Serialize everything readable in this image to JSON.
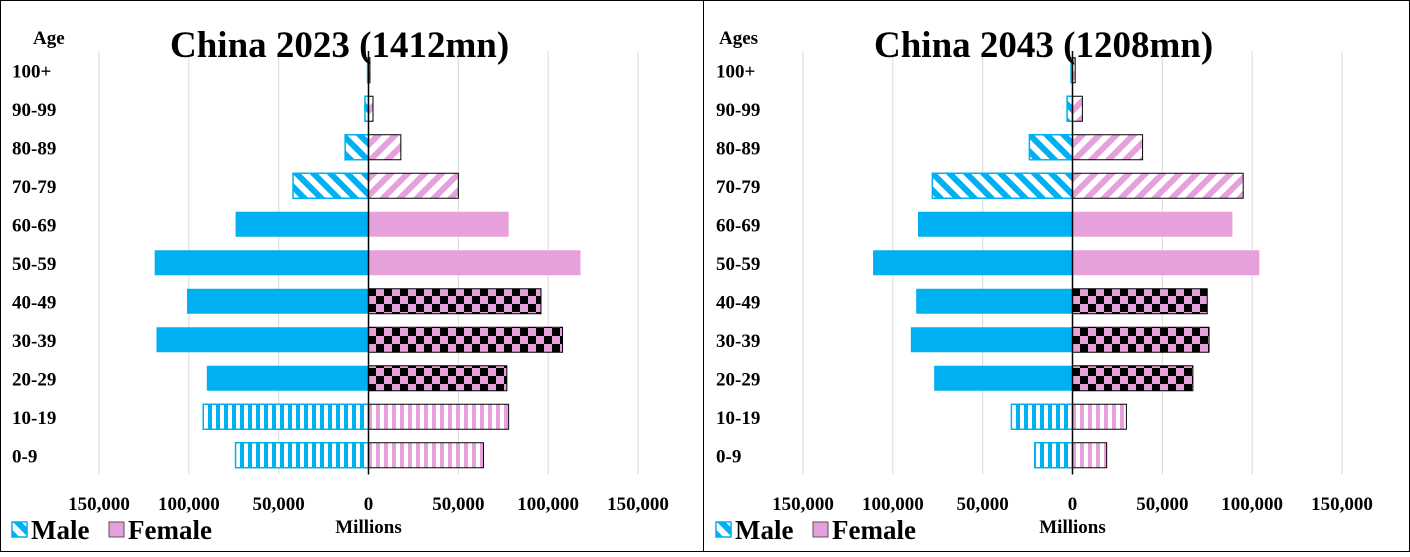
{
  "colors": {
    "male": "#00B0F0",
    "female": "#E6A0DC",
    "checker": "#000000",
    "grid": "#D9D9D9"
  },
  "chart_data": [
    {
      "type": "bar",
      "orientation": "horizontal",
      "title": "China  2023 (1412mn)",
      "ylabel": "Age",
      "xlabel": "Millions",
      "xlim": [
        -150000,
        150000
      ],
      "xticks": [
        -150000,
        -100000,
        -50000,
        0,
        50000,
        100000,
        150000
      ],
      "xtick_labels": [
        "150,000",
        "100,000",
        "50,000",
        "0",
        "50,000",
        "100,000",
        "150,000"
      ],
      "categories": [
        "100+",
        "90-99",
        "80-89",
        "70-79",
        "60-69",
        "50-59",
        "40-49",
        "30-39",
        "20-29",
        "10-19",
        "0-9"
      ],
      "grid": true,
      "legend": "bottom-left",
      "series": [
        {
          "name": "Male",
          "values": [
            -500,
            -2000,
            -13000,
            -42000,
            -74000,
            -119000,
            -101000,
            -118000,
            -90000,
            -92000,
            -74000
          ]
        },
        {
          "name": "Female",
          "values": [
            800,
            2500,
            18000,
            50000,
            78000,
            118000,
            96000,
            108000,
            77000,
            78000,
            64000
          ]
        }
      ]
    },
    {
      "type": "bar",
      "orientation": "horizontal",
      "title": "China  2043 (1208mn)",
      "ylabel": "Ages",
      "xlabel": "Millions",
      "xlim": [
        -150000,
        150000
      ],
      "xticks": [
        -150000,
        -100000,
        -50000,
        0,
        50000,
        100000,
        150000
      ],
      "xtick_labels": [
        "150,000",
        "100,000",
        "50,000",
        "0",
        "50,000",
        "100,000",
        "150,000"
      ],
      "categories": [
        "100+",
        "90-99",
        "80-89",
        "70-79",
        "60-69",
        "50-59",
        "40-49",
        "30-39",
        "20-29",
        "10-19",
        "0-9"
      ],
      "grid": true,
      "legend": "bottom-left",
      "series": [
        {
          "name": "Male",
          "values": [
            -800,
            -3000,
            -24000,
            -78000,
            -86000,
            -111000,
            -87000,
            -90000,
            -77000,
            -34000,
            -21000
          ]
        },
        {
          "name": "Female",
          "values": [
            1500,
            5500,
            39000,
            95000,
            89000,
            104000,
            75000,
            76000,
            67000,
            30000,
            19000
          ]
        }
      ]
    }
  ]
}
